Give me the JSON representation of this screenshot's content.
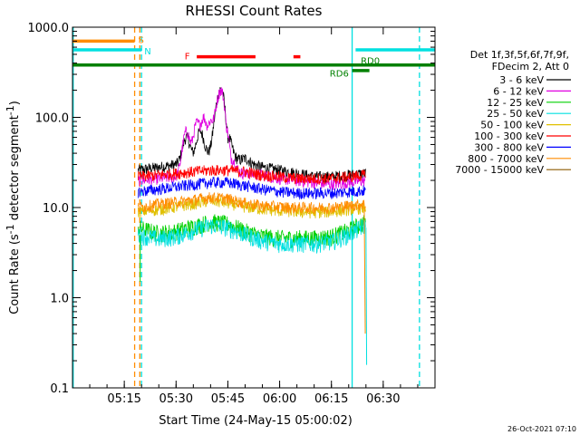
{
  "chart_data": {
    "type": "line",
    "title": "RHESSI Count Rates",
    "xlabel": "Start Time (24-May-15 05:00:02)",
    "ylabel": "Count Rate (s⁻¹ detector segment⁻¹)",
    "ylabel_parts": [
      "Count Rate (s",
      "-1",
      " detector segment",
      "-1",
      ")"
    ],
    "xlim_minutes": [
      0,
      105
    ],
    "ylim": [
      0.1,
      1000
    ],
    "yscale": "log",
    "xticks": [
      {
        "minute": 15,
        "label": "05:15"
      },
      {
        "minute": 30,
        "label": "05:30"
      },
      {
        "minute": 45,
        "label": "05:45"
      },
      {
        "minute": 60,
        "label": "06:00"
      },
      {
        "minute": 75,
        "label": "06:15"
      },
      {
        "minute": 90,
        "label": "06:30"
      }
    ],
    "yticks": [
      {
        "value": 1000,
        "label": "1000.0"
      },
      {
        "value": 100,
        "label": "100.0"
      },
      {
        "value": 10,
        "label": "10.0"
      },
      {
        "value": 1,
        "label": "1.0"
      },
      {
        "value": 0.1,
        "label": "0.1"
      }
    ],
    "legend_header": [
      "Det 1f,3f,5f,6f,7f,9f,",
      "FDecim 2, Att 0"
    ],
    "series": [
      {
        "name": "3 - 6 keV",
        "color": "#000000",
        "data_start": 19,
        "data_end": 85,
        "base": [
          [
            19,
            26
          ],
          [
            25,
            28
          ],
          [
            30,
            30
          ],
          [
            35,
            34
          ],
          [
            40,
            39
          ],
          [
            45,
            37
          ],
          [
            50,
            32
          ],
          [
            55,
            28
          ],
          [
            60,
            26
          ],
          [
            65,
            24
          ],
          [
            70,
            22
          ],
          [
            75,
            22
          ],
          [
            80,
            23
          ],
          [
            85,
            24
          ]
        ],
        "peaks": [
          [
            33,
            60
          ],
          [
            37,
            70
          ],
          [
            42,
            95
          ],
          [
            43,
            205
          ],
          [
            45,
            60
          ],
          [
            50,
            35
          ]
        ]
      },
      {
        "name": "6 - 12 keV",
        "color": "#e000e0",
        "data_start": 19,
        "data_end": 85,
        "base": [
          [
            19,
            20
          ],
          [
            25,
            21
          ],
          [
            30,
            22
          ],
          [
            35,
            24
          ],
          [
            40,
            26
          ],
          [
            45,
            25
          ],
          [
            50,
            24
          ],
          [
            55,
            23
          ],
          [
            60,
            21
          ],
          [
            65,
            20
          ],
          [
            70,
            19
          ],
          [
            75,
            18
          ],
          [
            80,
            19
          ],
          [
            85,
            20
          ]
        ],
        "peaks": [
          [
            33,
            70
          ],
          [
            36,
            85
          ],
          [
            38,
            100
          ],
          [
            40,
            90
          ],
          [
            42,
            100
          ],
          [
            43,
            200
          ],
          [
            44,
            80
          ],
          [
            46,
            35
          ]
        ]
      },
      {
        "name": "12 - 25 keV",
        "color": "#00d000",
        "data_start": 19,
        "data_end": 85,
        "base": [
          [
            19,
            6
          ],
          [
            25,
            5.2
          ],
          [
            30,
            5.5
          ],
          [
            35,
            6.2
          ],
          [
            40,
            7
          ],
          [
            45,
            6.6
          ],
          [
            50,
            5.5
          ],
          [
            55,
            4.8
          ],
          [
            60,
            4.6
          ],
          [
            65,
            4.6
          ],
          [
            70,
            4.6
          ],
          [
            75,
            4.8
          ],
          [
            80,
            5.6
          ],
          [
            85,
            7
          ]
        ],
        "peaks": []
      },
      {
        "name": "25 - 50 keV",
        "color": "#00e0e0",
        "data_start": 19,
        "data_end": 85,
        "base": [
          [
            19,
            5
          ],
          [
            25,
            4.5
          ],
          [
            30,
            4.8
          ],
          [
            35,
            5.6
          ],
          [
            40,
            6.4
          ],
          [
            45,
            6
          ],
          [
            50,
            5
          ],
          [
            55,
            4.3
          ],
          [
            60,
            4
          ],
          [
            65,
            4
          ],
          [
            70,
            4
          ],
          [
            75,
            4.2
          ],
          [
            80,
            5
          ],
          [
            85,
            6.5
          ]
        ],
        "peaks": []
      },
      {
        "name": "50 - 100 keV",
        "color": "#e0c000",
        "data_start": 19,
        "data_end": 85,
        "base": [
          [
            19,
            9
          ],
          [
            25,
            9.5
          ],
          [
            30,
            10.2
          ],
          [
            35,
            11
          ],
          [
            40,
            12
          ],
          [
            45,
            11.2
          ],
          [
            50,
            10.2
          ],
          [
            55,
            9.6
          ],
          [
            60,
            9.2
          ],
          [
            65,
            9
          ],
          [
            70,
            8.8
          ],
          [
            75,
            9
          ],
          [
            80,
            9.5
          ],
          [
            85,
            10
          ]
        ],
        "peaks": []
      },
      {
        "name": "100 - 300 keV",
        "color": "#ff0000",
        "data_start": 19,
        "data_end": 85,
        "base": [
          [
            19,
            22
          ],
          [
            25,
            23
          ],
          [
            30,
            24
          ],
          [
            35,
            25
          ],
          [
            40,
            26
          ],
          [
            45,
            26
          ],
          [
            50,
            25
          ],
          [
            55,
            23
          ],
          [
            60,
            22
          ],
          [
            65,
            21
          ],
          [
            70,
            21
          ],
          [
            75,
            21
          ],
          [
            80,
            22
          ],
          [
            85,
            23
          ]
        ],
        "peaks": []
      },
      {
        "name": "300 - 800 keV",
        "color": "#0000ff",
        "data_start": 19,
        "data_end": 85,
        "base": [
          [
            19,
            15
          ],
          [
            25,
            16
          ],
          [
            30,
            17
          ],
          [
            35,
            18
          ],
          [
            40,
            19
          ],
          [
            45,
            19
          ],
          [
            50,
            17.5
          ],
          [
            55,
            16
          ],
          [
            60,
            15
          ],
          [
            65,
            14.5
          ],
          [
            70,
            14.5
          ],
          [
            75,
            14.5
          ],
          [
            80,
            15
          ],
          [
            85,
            15.5
          ]
        ],
        "peaks": []
      },
      {
        "name": "800 - 7000 keV",
        "color": "#ff8c00",
        "data_start": 19,
        "data_end": 85,
        "base": [
          [
            19,
            10
          ],
          [
            25,
            11
          ],
          [
            30,
            11.5
          ],
          [
            35,
            12.2
          ],
          [
            40,
            13
          ],
          [
            45,
            12.5
          ],
          [
            50,
            11.2
          ],
          [
            55,
            10.5
          ],
          [
            60,
            10.2
          ],
          [
            65,
            10
          ],
          [
            70,
            10
          ],
          [
            75,
            10
          ],
          [
            80,
            10.5
          ],
          [
            85,
            11
          ]
        ],
        "peaks": []
      },
      {
        "name": "7000 - 15000 keV",
        "color": "#8b5a00",
        "data_start": 19,
        "data_end": 85,
        "base": [],
        "peaks": []
      }
    ],
    "annotations": {
      "S_label": "S",
      "N_label": "N",
      "F_label": "F",
      "RD0_label": "RD0",
      "RD6_label": "RD6"
    },
    "flags": [
      {
        "label": "S",
        "color": "#ff8c00",
        "start": 0,
        "end": 18,
        "value": 700
      },
      {
        "label": "N",
        "color": "#00e0e0",
        "start": 0,
        "end": 20,
        "value": 560
      },
      {
        "label": "F",
        "color": "#ff0000",
        "start": 36,
        "end": 53,
        "value": 470
      },
      {
        "label": "F",
        "color": "#ff0000",
        "start": 64,
        "end": 66,
        "value": 470
      },
      {
        "label": "RD0",
        "color": "#008000",
        "start": 0,
        "end": 105,
        "value": 380
      },
      {
        "label": "RD6",
        "color": "#008000",
        "start": 81,
        "end": 86,
        "value": 330
      },
      {
        "label": "N",
        "color": "#00e0e0",
        "start": 82,
        "end": 105,
        "value": 560
      }
    ],
    "vertical_lines": [
      {
        "minute": 0.2,
        "color": "#00e0e0",
        "style": "solid"
      },
      {
        "minute": 18,
        "color": "#ff8c00",
        "style": "dashed"
      },
      {
        "minute": 19.5,
        "color": "#ff8c00",
        "style": "dashed"
      },
      {
        "minute": 20,
        "color": "#00e0e0",
        "style": "dashed"
      },
      {
        "minute": 81,
        "color": "#00e0e0",
        "style": "solid"
      },
      {
        "minute": 100.5,
        "color": "#00e0e0",
        "style": "dashed"
      }
    ],
    "timestamp": "26-Oct-2021 07:10"
  }
}
